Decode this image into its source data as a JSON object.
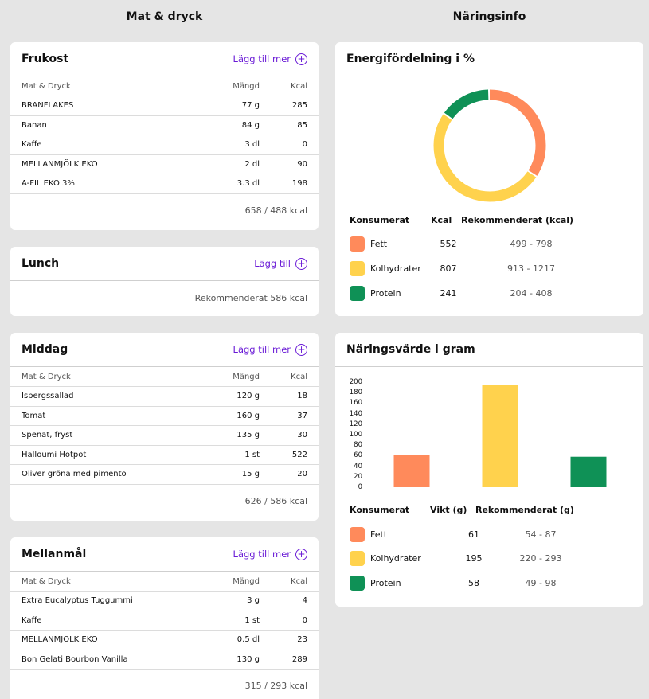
{
  "columns": {
    "left_title": "Mat & dryck",
    "right_title": "Näringsinfo"
  },
  "table_headers": {
    "name": "Mat & Dryck",
    "amount": "Mängd",
    "kcal": "Kcal"
  },
  "meals": {
    "frukost": {
      "title": "Frukost",
      "add_label": "Lägg till mer",
      "items": [
        {
          "name": "BRANFLAKES",
          "amount": "77 g",
          "kcal": "285"
        },
        {
          "name": "Banan",
          "amount": "84 g",
          "kcal": "85"
        },
        {
          "name": "Kaffe",
          "amount": "3 dl",
          "kcal": "0"
        },
        {
          "name": "MELLANMJÖLK EKO",
          "amount": "2 dl",
          "kcal": "90"
        },
        {
          "name": "A-FIL EKO 3%",
          "amount": "3.3 dl",
          "kcal": "198"
        }
      ],
      "total": "658 / 488 kcal"
    },
    "lunch": {
      "title": "Lunch",
      "add_label": "Lägg till",
      "total": "Rekommenderat 586 kcal"
    },
    "middag": {
      "title": "Middag",
      "add_label": "Lägg till mer",
      "items": [
        {
          "name": "Isbergssallad",
          "amount": "120 g",
          "kcal": "18"
        },
        {
          "name": "Tomat",
          "amount": "160 g",
          "kcal": "37"
        },
        {
          "name": "Spenat, fryst",
          "amount": "135 g",
          "kcal": "30"
        },
        {
          "name": "Halloumi Hotpot",
          "amount": "1 st",
          "kcal": "522"
        },
        {
          "name": "Oliver gröna med pimento",
          "amount": "15 g",
          "kcal": "20"
        }
      ],
      "total": "626 / 586 kcal"
    },
    "mellanmal": {
      "title": "Mellanmål",
      "add_label": "Lägg till mer",
      "items": [
        {
          "name": "Extra Eucalyptus Tuggummi",
          "amount": "3 g",
          "kcal": "4"
        },
        {
          "name": "Kaffe",
          "amount": "1 st",
          "kcal": "0"
        },
        {
          "name": "MELLANMJÖLK EKO",
          "amount": "0.5 dl",
          "kcal": "23"
        },
        {
          "name": "Bon Gelati Bourbon Vanilla",
          "amount": "130 g",
          "kcal": "289"
        }
      ],
      "total": "315 / 293 kcal"
    }
  },
  "energy": {
    "title": "Energifördelning i %",
    "headers": {
      "consumed": "Konsumerat",
      "kcal": "Kcal",
      "recommended": "Rekommenderat (kcal)"
    },
    "rows": [
      {
        "name": "Fett",
        "value": "552",
        "range": "499 - 798",
        "color": "#ff8a5b"
      },
      {
        "name": "Kolhydrater",
        "value": "807",
        "range": "913 - 1217",
        "color": "#ffd24d"
      },
      {
        "name": "Protein",
        "value": "241",
        "range": "204 - 408",
        "color": "#0f9156"
      }
    ]
  },
  "nutrition": {
    "title": "Näringsvärde i gram",
    "headers": {
      "consumed": "Konsumerat",
      "weight": "Vikt (g)",
      "recommended": "Rekommenderat (g)"
    },
    "rows": [
      {
        "name": "Fett",
        "value": "61",
        "range": "54 - 87",
        "color": "#ff8a5b"
      },
      {
        "name": "Kolhydrater",
        "value": "195",
        "range": "220 - 293",
        "color": "#ffd24d"
      },
      {
        "name": "Protein",
        "value": "58",
        "range": "49 - 98",
        "color": "#0f9156"
      }
    ]
  },
  "chart_data": [
    {
      "type": "pie",
      "categories": [
        "Fett",
        "Kolhydrater",
        "Protein"
      ],
      "values": [
        552,
        807,
        241
      ],
      "colors": [
        "#ff8a5b",
        "#ffd24d",
        "#0f9156"
      ],
      "title": "Energifördelning i %"
    },
    {
      "type": "bar",
      "categories": [
        "Fett",
        "Kolhydrater",
        "Protein"
      ],
      "values": [
        61,
        195,
        58
      ],
      "colors": [
        "#ff8a5b",
        "#ffd24d",
        "#0f9156"
      ],
      "yticks": [
        "0",
        "20",
        "40",
        "60",
        "80",
        "100",
        "120",
        "140",
        "160",
        "180",
        "200"
      ],
      "ylim": [
        0,
        200
      ],
      "title": "Näringsvärde i gram"
    }
  ]
}
